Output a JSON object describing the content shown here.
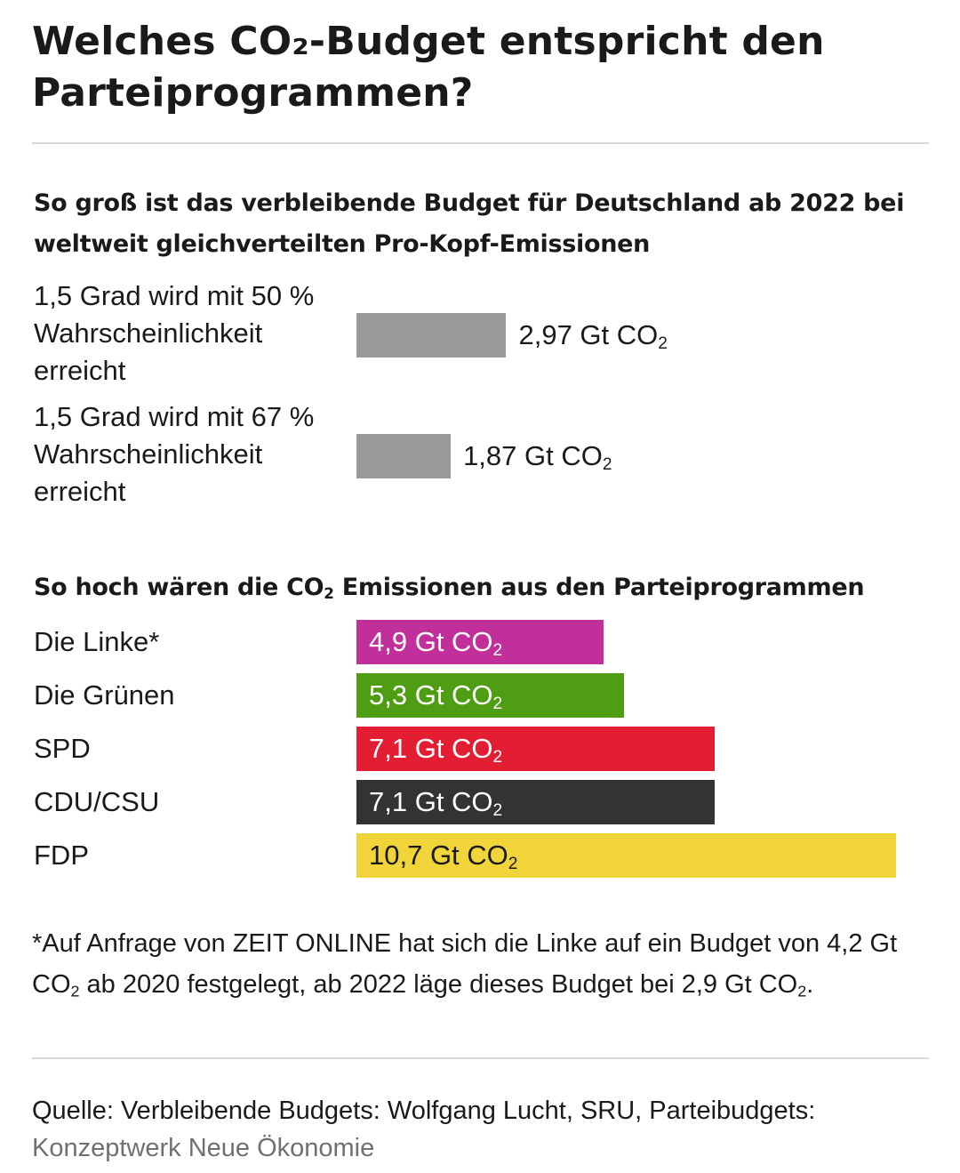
{
  "title": "Welches CO₂-Budget entspricht den Parteiprogrammen?",
  "chart_data": [
    {
      "type": "bar",
      "title": "So groß ist das verbleibende Budget für Deutschland ab 2022 bei weltweit gleichverteilten Pro-Kopf-Emissionen",
      "categories": [
        "1,5 Grad wird mit 50 % Wahrscheinlichkeit erreicht",
        "1,5 Grad wird mit 67 % Wahrscheinlichkeit erreicht"
      ],
      "values": [
        2.97,
        1.87
      ],
      "value_labels": [
        "2,97 Gt CO₂",
        "1,87 Gt CO₂"
      ],
      "color": "#999999",
      "xlim": [
        0,
        11.3
      ]
    },
    {
      "type": "bar",
      "title": "So hoch wären die CO₂ Emissionen aus den Parteiprogrammen",
      "categories": [
        "Die Linke*",
        "Die Grünen",
        "SPD",
        "CDU/CSU",
        "FDP"
      ],
      "values": [
        4.9,
        5.3,
        7.1,
        7.1,
        10.7
      ],
      "value_labels": [
        "4,9 Gt CO₂",
        "5,3 Gt CO₂",
        "7,1 Gt CO₂",
        "7,1 Gt CO₂",
        "10,7 Gt CO₂"
      ],
      "colors": [
        "#c1309a",
        "#4e9d12",
        "#e31e33",
        "#333333",
        "#f0d43a"
      ],
      "label_colors": [
        "#ffffff",
        "#ffffff",
        "#ffffff",
        "#ffffff",
        "#1a1a1a"
      ],
      "xlim": [
        0,
        11.3
      ]
    }
  ],
  "footnote": "*Auf Anfrage von ZEIT ONLINE hat sich die Linke auf ein Budget von 4,2 Gt CO₂ ab 2020 festgelegt, ab 2022 läge dieses Budget bei 2,9 Gt CO₂.",
  "source": {
    "text": "Quelle: Verbleibende Budgets: Wolfgang Lucht, SRU, Parteibudgets:",
    "org": "Konzeptwerk Neue Ökonomie"
  }
}
